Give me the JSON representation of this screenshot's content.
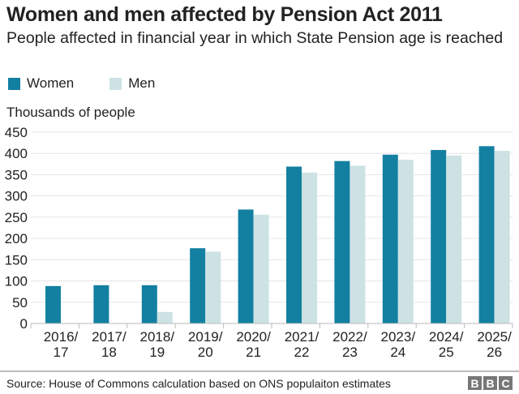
{
  "chart_data": {
    "type": "bar",
    "title": "Women and men affected by Pension Act 2011",
    "subtitle": "People affected in financial year in which State Pension age is reached",
    "ylabel": "Thousands of people",
    "xlabel": "",
    "ylim": [
      0,
      450
    ],
    "yticks": [
      0,
      50,
      100,
      150,
      200,
      250,
      300,
      350,
      400,
      450
    ],
    "grid": true,
    "legend_placement": "top-left",
    "categories": [
      [
        "2016/",
        "17"
      ],
      [
        "2017/",
        "18"
      ],
      [
        "2018/",
        "19"
      ],
      [
        "2019/",
        "20"
      ],
      [
        "2020/",
        "21"
      ],
      [
        "2021/",
        "22"
      ],
      [
        "2022/",
        "23"
      ],
      [
        "2023/",
        "24"
      ],
      [
        "2024/",
        "25"
      ],
      [
        "2025/",
        "26"
      ]
    ],
    "series": [
      {
        "name": "Women",
        "color": "#1380A1",
        "values": [
          88,
          90,
          90,
          177,
          268,
          369,
          382,
          397,
          408,
          417
        ]
      },
      {
        "name": "Men",
        "color": "#CCE2E4",
        "values": [
          0,
          0,
          27,
          169,
          256,
          355,
          371,
          385,
          395,
          406
        ]
      }
    ]
  },
  "footer": {
    "source": "Source: House of Commons calculation based on ONS populaiton estimates",
    "logo": [
      "B",
      "B",
      "C"
    ]
  }
}
